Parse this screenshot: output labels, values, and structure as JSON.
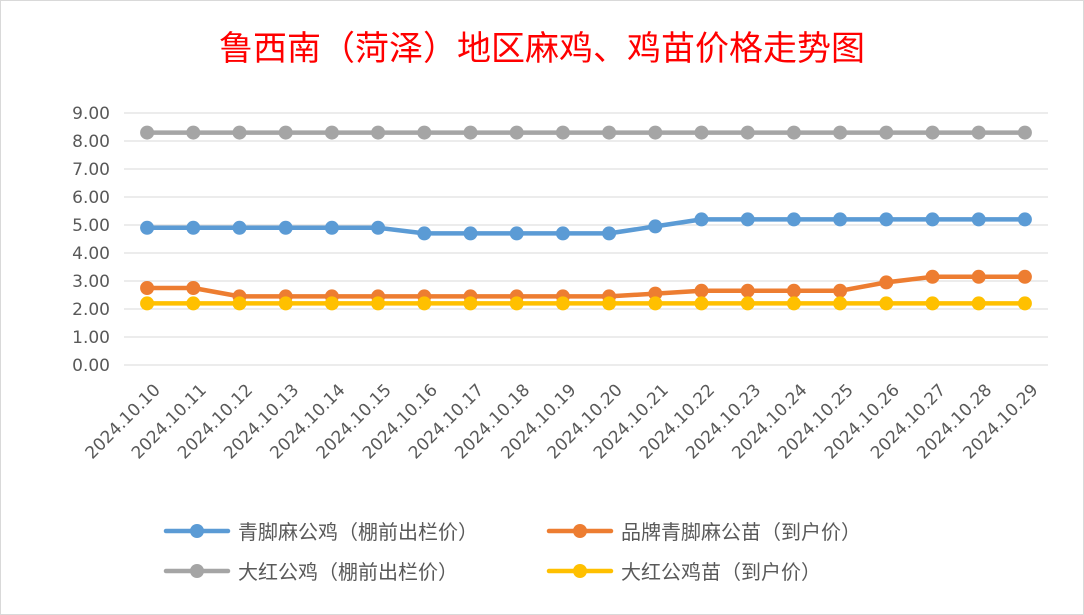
{
  "chart_data": {
    "type": "line",
    "title": "鲁西南（菏泽）地区麻鸡、鸡苗价格走势图",
    "categories": [
      "2024.10.10",
      "2024.10.11",
      "2024.10.12",
      "2024.10.13",
      "2024.10.14",
      "2024.10.15",
      "2024.10.16",
      "2024.10.17",
      "2024.10.18",
      "2024.10.19",
      "2024.10.20",
      "2024.10.21",
      "2024.10.22",
      "2024.10.23",
      "2024.10.24",
      "2024.10.25",
      "2024.10.26",
      "2024.10.27",
      "2024.10.28",
      "2024.10.29"
    ],
    "y_ticks": [
      "0.00",
      "1.00",
      "2.00",
      "3.00",
      "4.00",
      "5.00",
      "6.00",
      "7.00",
      "8.00",
      "9.00"
    ],
    "ylim": [
      0,
      9
    ],
    "grid": true,
    "legend_position": "bottom",
    "series": [
      {
        "name": "青脚麻公鸡（棚前出栏价）",
        "color": "#5b9bd5",
        "values": [
          4.9,
          4.9,
          4.9,
          4.9,
          4.9,
          4.9,
          4.7,
          4.7,
          4.7,
          4.7,
          4.7,
          4.95,
          5.2,
          5.2,
          5.2,
          5.2,
          5.2,
          5.2,
          5.2,
          5.2
        ]
      },
      {
        "name": "品牌青脚麻公苗（到户价）",
        "color": "#ed7d31",
        "values": [
          2.75,
          2.75,
          2.45,
          2.45,
          2.45,
          2.45,
          2.45,
          2.45,
          2.45,
          2.45,
          2.45,
          2.55,
          2.65,
          2.65,
          2.65,
          2.65,
          2.95,
          3.15,
          3.15,
          3.15
        ]
      },
      {
        "name": "大红公鸡（棚前出栏价）",
        "color": "#a5a5a5",
        "values": [
          8.3,
          8.3,
          8.3,
          8.3,
          8.3,
          8.3,
          8.3,
          8.3,
          8.3,
          8.3,
          8.3,
          8.3,
          8.3,
          8.3,
          8.3,
          8.3,
          8.3,
          8.3,
          8.3,
          8.3
        ]
      },
      {
        "name": "大红公鸡苗（到户价）",
        "color": "#ffc000",
        "values": [
          2.2,
          2.2,
          2.2,
          2.2,
          2.2,
          2.2,
          2.2,
          2.2,
          2.2,
          2.2,
          2.2,
          2.2,
          2.2,
          2.2,
          2.2,
          2.2,
          2.2,
          2.2,
          2.2,
          2.2
        ]
      }
    ]
  }
}
